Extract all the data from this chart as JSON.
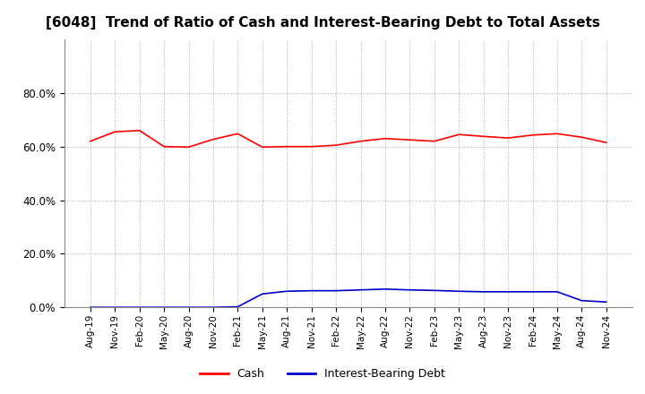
{
  "title": "[6048]  Trend of Ratio of Cash and Interest-Bearing Debt to Total Assets",
  "x_labels": [
    "Aug-19",
    "Nov-19",
    "Feb-20",
    "May-20",
    "Aug-20",
    "Nov-20",
    "Feb-21",
    "May-21",
    "Aug-21",
    "Nov-21",
    "Feb-22",
    "May-22",
    "Aug-22",
    "Nov-22",
    "Feb-23",
    "May-23",
    "Aug-23",
    "Nov-23",
    "Feb-24",
    "May-24",
    "Aug-24",
    "Nov-24"
  ],
  "cash": [
    0.62,
    0.655,
    0.66,
    0.6,
    0.598,
    0.627,
    0.648,
    0.598,
    0.6,
    0.6,
    0.605,
    0.62,
    0.63,
    0.625,
    0.62,
    0.645,
    0.638,
    0.632,
    0.643,
    0.648,
    0.635,
    0.615
  ],
  "interest_bearing_debt": [
    0.0,
    0.0,
    0.0,
    0.0,
    0.0,
    0.0,
    0.002,
    0.05,
    0.06,
    0.062,
    0.062,
    0.065,
    0.068,
    0.065,
    0.063,
    0.06,
    0.058,
    0.058,
    0.058,
    0.058,
    0.025,
    0.02
  ],
  "cash_color": "#FF0000",
  "debt_color": "#0000CC",
  "background_color": "#FFFFFF",
  "plot_bg_color": "#FFFFFF",
  "grid_color": "#AAAAAA",
  "ylim": [
    0.0,
    1.0
  ],
  "yticks": [
    0.0,
    0.2,
    0.4,
    0.6,
    0.8
  ],
  "title_fontsize": 11,
  "legend_labels": [
    "Cash",
    "Interest-Bearing Debt"
  ]
}
